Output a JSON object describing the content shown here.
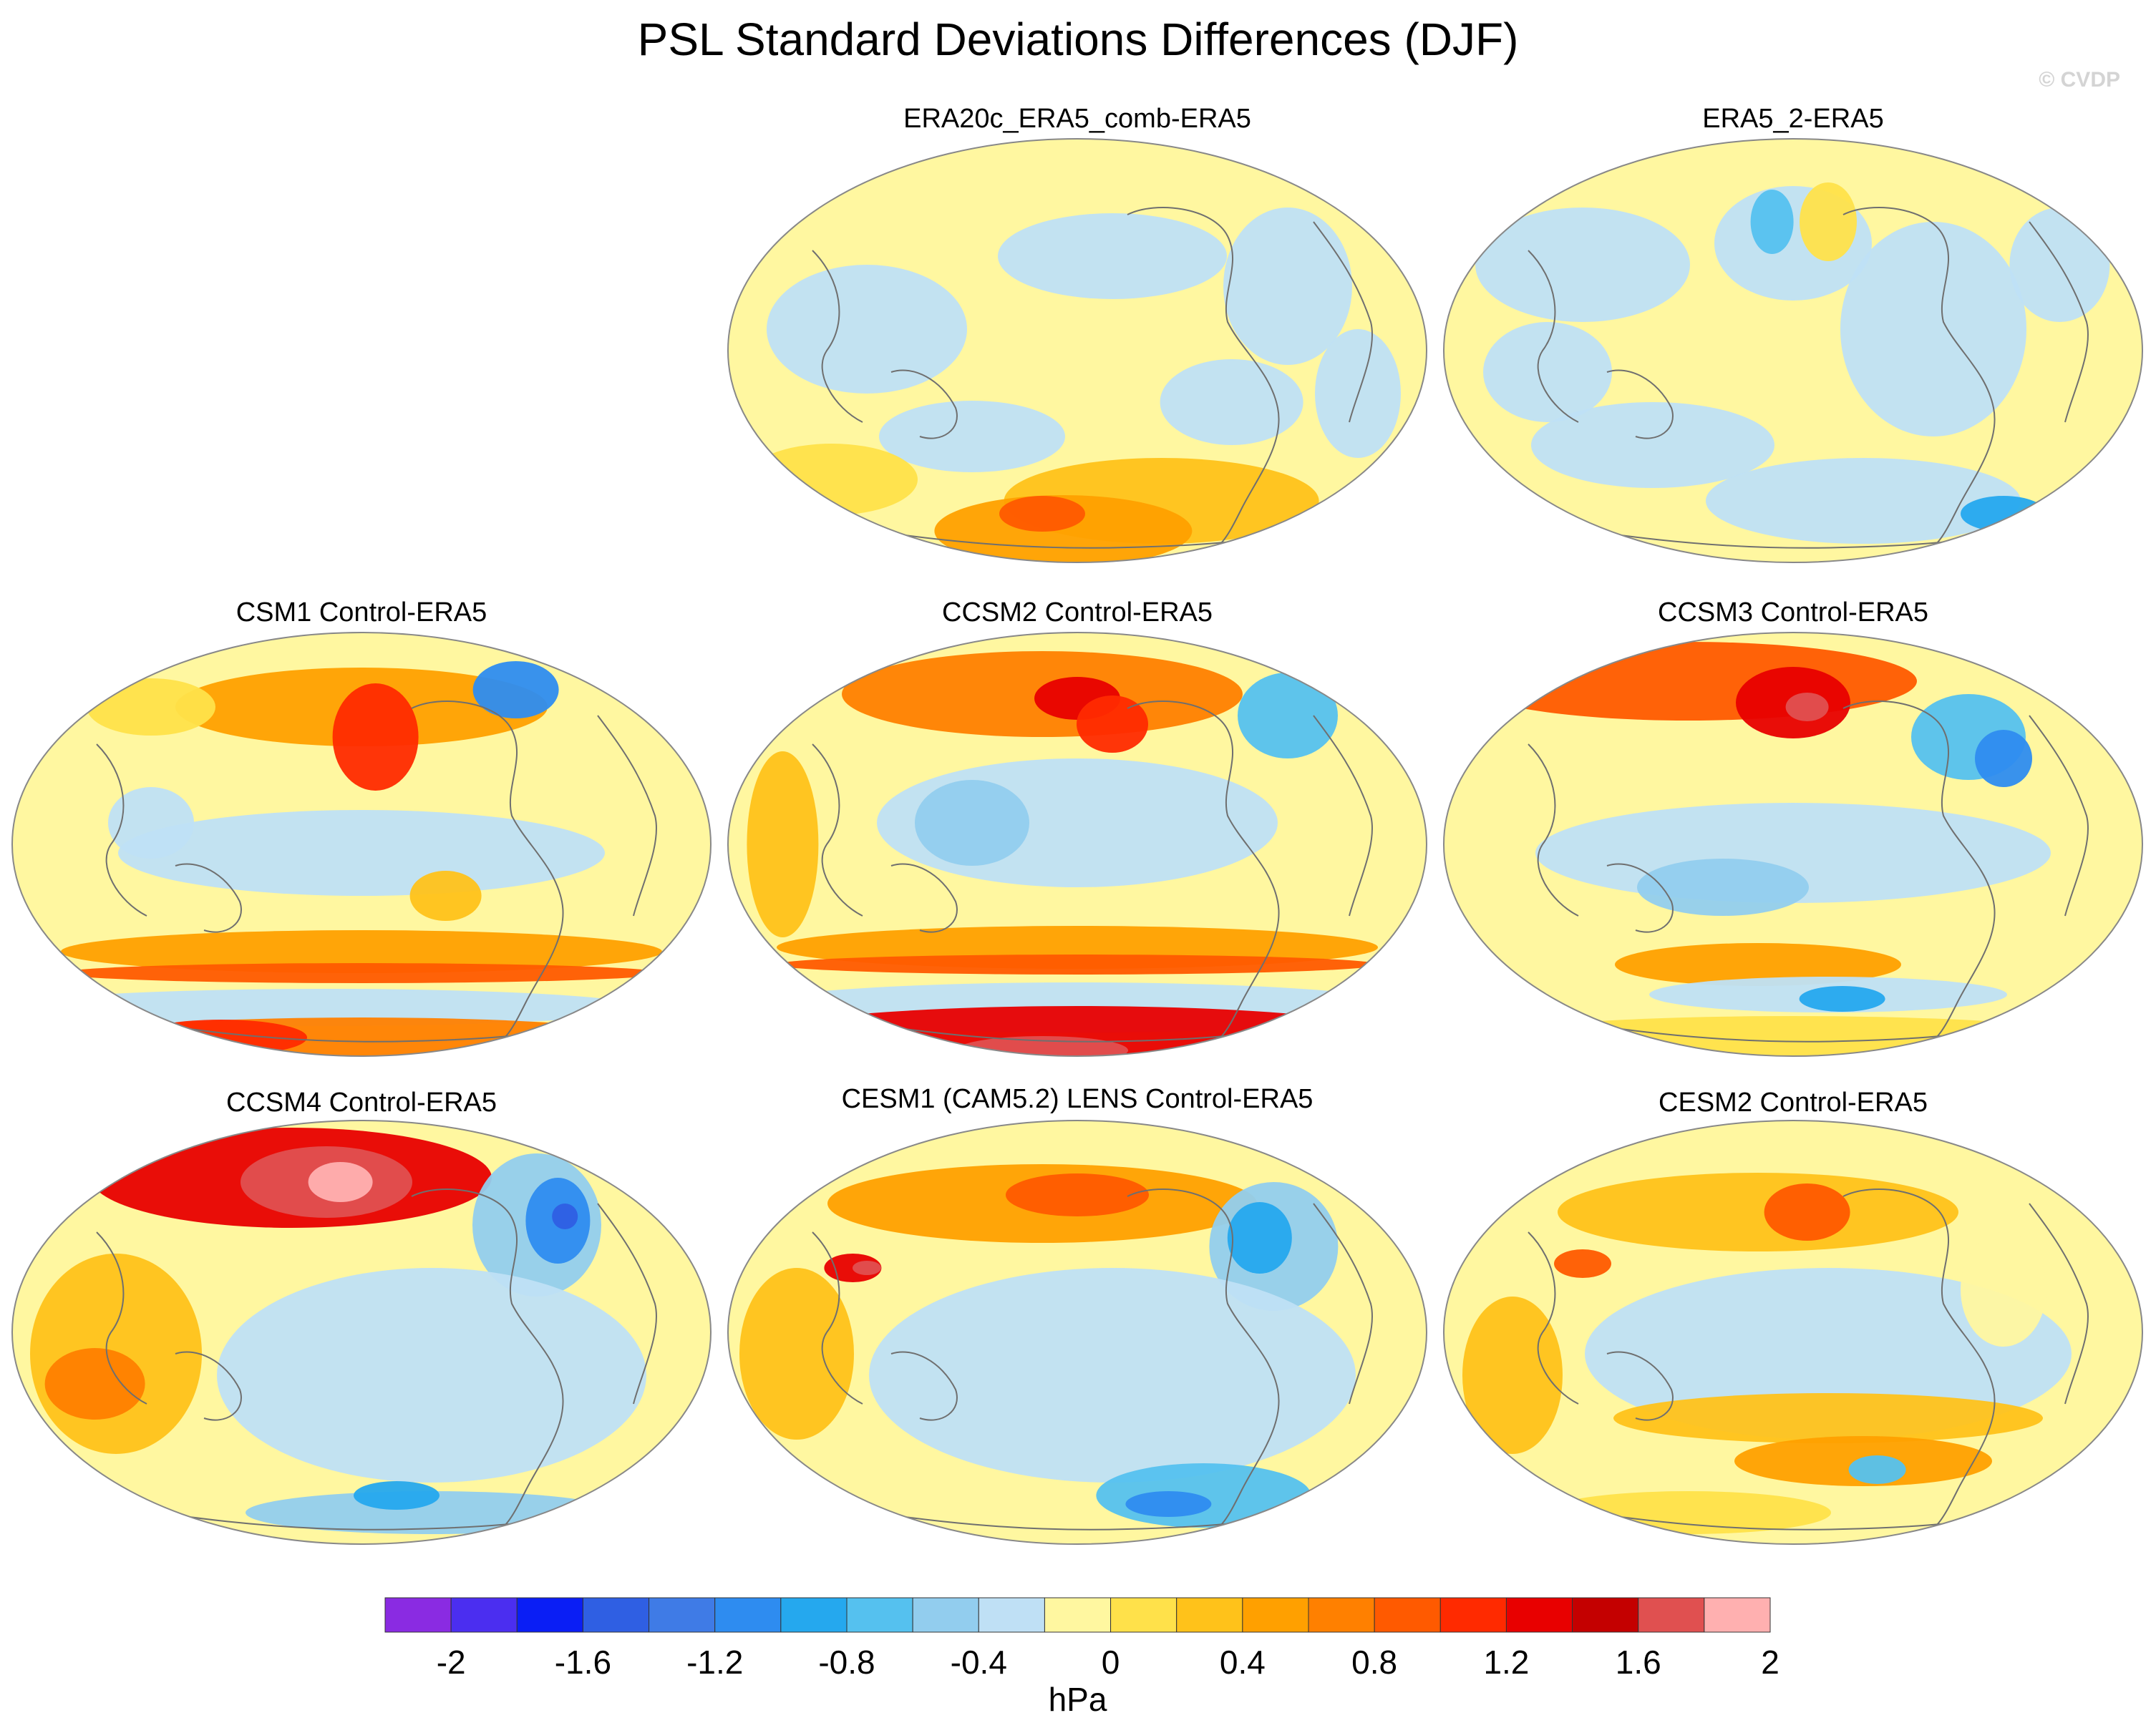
{
  "figure": {
    "title": "PSL Standard Deviations Differences (DJF)",
    "watermark": "© CVDP"
  },
  "panels": [
    {
      "title": "ERA20c_ERA5_comb-ERA5",
      "pattern": "mild"
    },
    {
      "title": "ERA5_2-ERA5",
      "pattern": "mild-cool"
    },
    {
      "title": "CSM1 Control-ERA5",
      "pattern": "warm-north-south-bands"
    },
    {
      "title": "CCSM2 Control-ERA5",
      "pattern": "strong-south-band"
    },
    {
      "title": "CCSM3 Control-ERA5",
      "pattern": "warm-north"
    },
    {
      "title": "CCSM4 Control-ERA5",
      "pattern": "hot-north"
    },
    {
      "title": "CESM1 (CAM5.2) LENS Control-ERA5",
      "pattern": "warm-north-cool-atlantic"
    },
    {
      "title": "CESM2 Control-ERA5",
      "pattern": "moderate"
    }
  ],
  "colorbar": {
    "label": "hPa",
    "tick_labels": [
      "-2",
      "-1.6",
      "-1.2",
      "-0.8",
      "-0.4",
      "0",
      "0.4",
      "0.8",
      "1.2",
      "1.6",
      "2"
    ],
    "colors": [
      "#8a2be2",
      "#4b2ef0",
      "#0a1ef5",
      "#2f5fe3",
      "#3f7be6",
      "#2e8cf0",
      "#25a8ee",
      "#55c1ef",
      "#92cdee",
      "#bfe0f5",
      "#fff7a0",
      "#ffe14a",
      "#ffc21a",
      "#ffa000",
      "#ff8000",
      "#ff5a00",
      "#ff2a00",
      "#e80000",
      "#c40000",
      "#e05050",
      "#ffb0b0"
    ]
  }
}
